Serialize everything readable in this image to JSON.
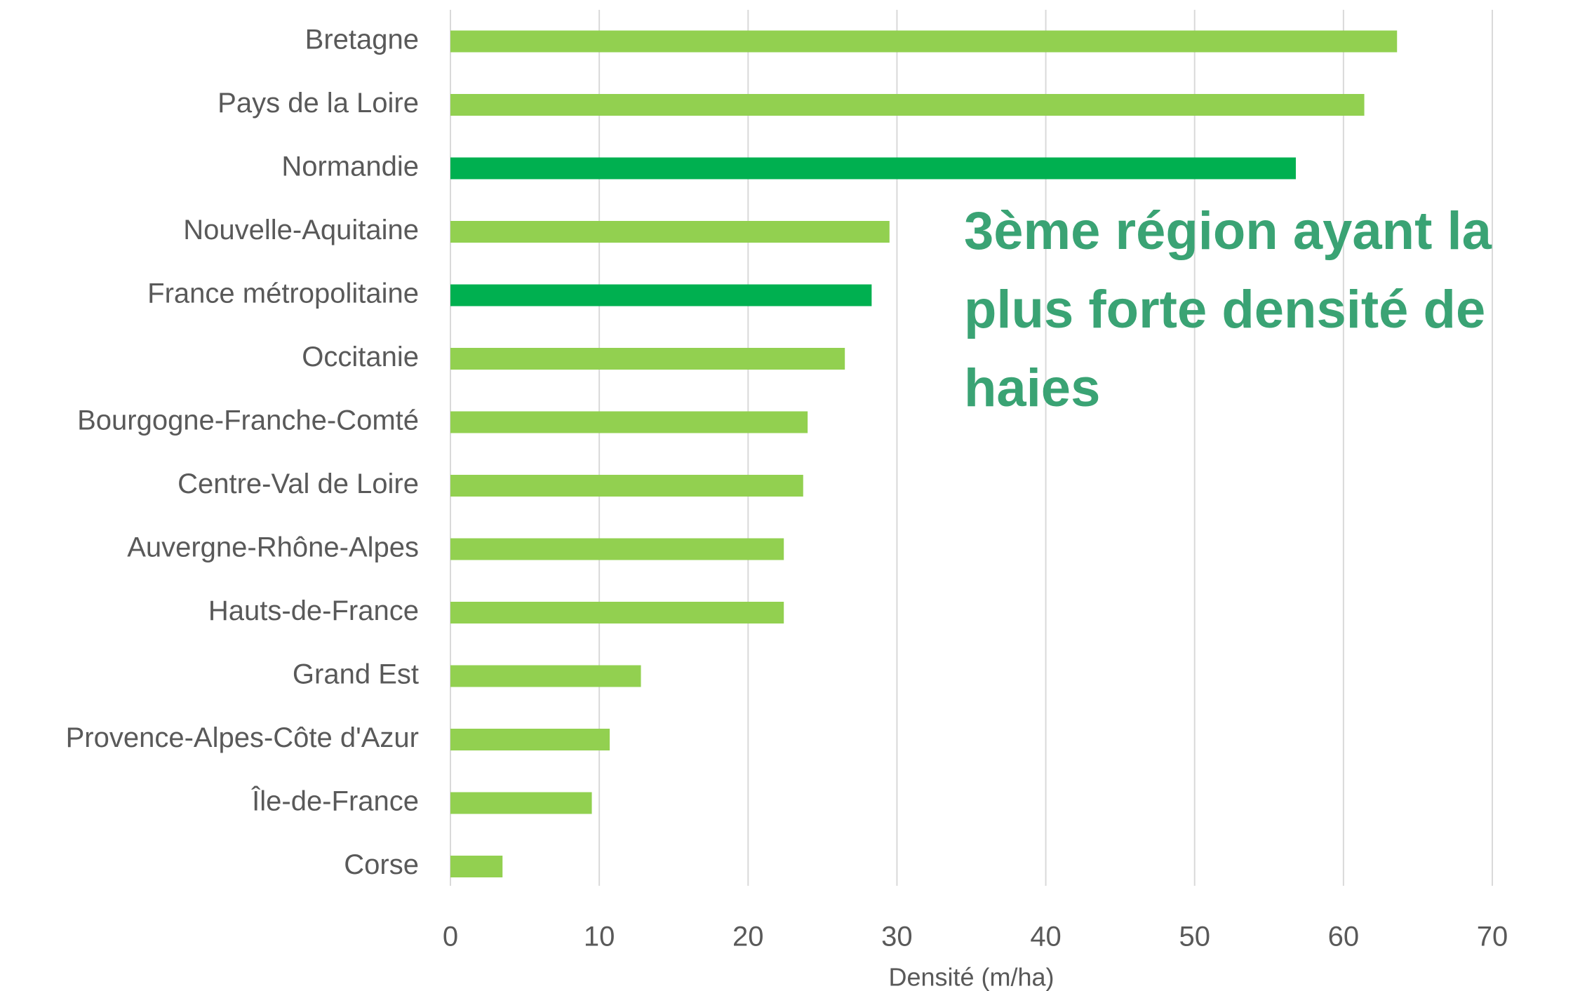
{
  "chart_data": {
    "type": "barh",
    "categories": [
      "Bretagne",
      "Pays de la Loire",
      "Normandie",
      "Nouvelle-Aquitaine",
      "France métropolitaine",
      "Occitanie",
      "Bourgogne-Franche-Comté",
      "Centre-Val de Loire",
      "Auvergne-Rhône-Alpes",
      "Hauts-de-France",
      "Grand Est",
      "Provence-Alpes-Côte d'Azur",
      "Île-de-France",
      "Corse"
    ],
    "values": [
      63.6,
      61.4,
      56.8,
      29.5,
      28.3,
      26.5,
      24.0,
      23.7,
      22.4,
      22.4,
      12.8,
      10.7,
      9.5,
      3.5
    ],
    "colors": [
      "#92d050",
      "#92d050",
      "#00b050",
      "#92d050",
      "#00b050",
      "#92d050",
      "#92d050",
      "#92d050",
      "#92d050",
      "#92d050",
      "#92d050",
      "#92d050",
      "#92d050",
      "#92d050"
    ],
    "xlim": [
      0,
      70
    ],
    "xticks": [
      0,
      10,
      20,
      30,
      40,
      50,
      60,
      70
    ],
    "grid": true,
    "x_label": "Densité (m/ha)",
    "annotation": {
      "lines": [
        "3ème région ayant la",
        "plus forte densité de",
        "haies"
      ],
      "color": "#3aa374"
    }
  }
}
